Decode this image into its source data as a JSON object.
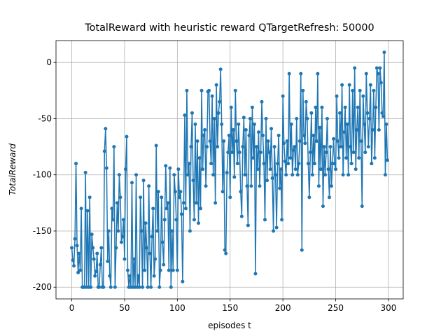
{
  "chart_data": {
    "type": "line",
    "title": "TotalReward with heuristic reward QTargetRefresh: 50000",
    "xlabel": "episodes t",
    "ylabel": "TotalReward",
    "x": [
      0,
      1,
      2,
      3,
      4,
      5,
      6,
      7,
      8,
      9,
      10,
      11,
      12,
      13,
      14,
      15,
      16,
      17,
      18,
      19,
      20,
      21,
      22,
      23,
      24,
      25,
      26,
      27,
      28,
      29,
      30,
      31,
      32,
      33,
      34,
      35,
      36,
      37,
      38,
      39,
      40,
      41,
      42,
      43,
      44,
      45,
      46,
      47,
      48,
      49,
      50,
      51,
      52,
      53,
      54,
      55,
      56,
      57,
      58,
      59,
      60,
      61,
      62,
      63,
      64,
      65,
      66,
      67,
      68,
      69,
      70,
      71,
      72,
      73,
      74,
      75,
      76,
      77,
      78,
      79,
      80,
      81,
      82,
      83,
      84,
      85,
      86,
      87,
      88,
      89,
      90,
      91,
      92,
      93,
      94,
      95,
      96,
      97,
      98,
      99,
      100,
      101,
      102,
      103,
      104,
      105,
      106,
      107,
      108,
      109,
      110,
      111,
      112,
      113,
      114,
      115,
      116,
      117,
      118,
      119,
      120,
      121,
      122,
      123,
      124,
      125,
      126,
      127,
      128,
      129,
      130,
      131,
      132,
      133,
      134,
      135,
      136,
      137,
      138,
      139,
      140,
      141,
      142,
      143,
      144,
      145,
      146,
      147,
      148,
      149,
      150,
      151,
      152,
      153,
      154,
      155,
      156,
      157,
      158,
      159,
      160,
      161,
      162,
      163,
      164,
      165,
      166,
      167,
      168,
      169,
      170,
      171,
      172,
      173,
      174,
      175,
      176,
      177,
      178,
      179,
      180,
      181,
      182,
      183,
      184,
      185,
      186,
      187,
      188,
      189,
      190,
      191,
      192,
      193,
      194,
      195,
      196,
      197,
      198,
      199,
      200,
      201,
      202,
      203,
      204,
      205,
      206,
      207,
      208,
      209,
      210,
      211,
      212,
      213,
      214,
      215,
      216,
      217,
      218,
      219,
      220,
      221,
      222,
      223,
      224,
      225,
      226,
      227,
      228,
      229,
      230,
      231,
      232,
      233,
      234,
      235,
      236,
      237,
      238,
      239,
      240,
      241,
      242,
      243,
      244,
      245,
      246,
      247,
      248,
      249,
      250,
      251,
      252,
      253,
      254,
      255,
      256,
      257,
      258,
      259,
      260,
      261,
      262,
      263,
      264,
      265,
      266,
      267,
      268,
      269,
      270,
      271,
      272,
      273,
      274,
      275,
      276,
      277,
      278,
      279,
      280,
      281,
      282,
      283,
      284,
      285,
      286,
      287,
      288,
      289,
      290,
      291,
      292,
      293,
      294,
      295,
      296,
      297,
      298,
      299
    ],
    "series": [
      {
        "color": "#1f77b4",
        "values": [
          -165,
          -176,
          -181,
          -157,
          -90,
          -163,
          -187,
          -170,
          -185,
          -130,
          -200,
          -200,
          -200,
          -98,
          -200,
          -132,
          -200,
          -120,
          -200,
          -153,
          -165,
          -175,
          -190,
          -186,
          -170,
          -200,
          -200,
          -180,
          -165,
          -200,
          -200,
          -79,
          -59,
          -94,
          -177,
          -150,
          -190,
          -200,
          -130,
          -140,
          -75,
          -200,
          -165,
          -125,
          -150,
          -100,
          -120,
          -160,
          -155,
          -140,
          -175,
          -95,
          -66,
          -185,
          -200,
          -190,
          -200,
          -107,
          -200,
          -175,
          -200,
          -100,
          -200,
          -190,
          -200,
          -120,
          -150,
          -200,
          -105,
          -185,
          -143,
          -165,
          -200,
          -110,
          -170,
          -200,
          -155,
          -130,
          -190,
          -175,
          -74,
          -150,
          -115,
          -200,
          -185,
          -120,
          -160,
          -180,
          -140,
          -92,
          -130,
          -125,
          -185,
          -94,
          -200,
          -150,
          -185,
          -100,
          -115,
          -140,
          -185,
          -95,
          -120,
          -115,
          -135,
          -195,
          -125,
          -47,
          -130,
          -25,
          -100,
          -90,
          -150,
          -75,
          -45,
          -105,
          -140,
          -55,
          -125,
          -70,
          -143,
          -85,
          -130,
          -25,
          -95,
          -65,
          -60,
          -110,
          -75,
          -26,
          -25,
          -70,
          -90,
          -30,
          -100,
          -50,
          -125,
          -20,
          -75,
          -45,
          -35,
          -6,
          -55,
          -115,
          -70,
          -167,
          -170,
          -98,
          -80,
          -65,
          -120,
          -40,
          -80,
          -60,
          -102,
          -25,
          -70,
          -90,
          -55,
          -80,
          -115,
          -137,
          -75,
          -49,
          -100,
          -60,
          -110,
          -145,
          -65,
          -50,
          -110,
          -40,
          -85,
          -55,
          -188,
          -75,
          -95,
          -62,
          -110,
          -80,
          -35,
          -65,
          -90,
          -140,
          -50,
          -105,
          -70,
          -80,
          -95,
          -59,
          -103,
          -150,
          -75,
          -100,
          -147,
          -90,
          -65,
          -112,
          -95,
          -140,
          -30,
          -72,
          -88,
          -100,
          -70,
          -90,
          -10,
          -85,
          -55,
          -100,
          -78,
          -75,
          -95,
          -50,
          -100,
          -90,
          -70,
          -10,
          -167,
          -25,
          -65,
          -72,
          -35,
          -50,
          -90,
          -120,
          -80,
          -45,
          -100,
          -65,
          -90,
          -40,
          -70,
          -10,
          -110,
          -58,
          -95,
          -40,
          -128,
          -75,
          -100,
          -80,
          -50,
          -95,
          -120,
          -75,
          -110,
          -90,
          -68,
          -90,
          -95,
          -30,
          -70,
          -85,
          -45,
          -75,
          -20,
          -100,
          -62,
          -40,
          -85,
          -55,
          -100,
          -20,
          -75,
          -90,
          -25,
          -80,
          -5,
          -95,
          -60,
          -40,
          -85,
          -25,
          -70,
          -128,
          -30,
          -55,
          -80,
          -10,
          -45,
          -75,
          -50,
          -20,
          -90,
          -60,
          -25,
          -85,
          -40,
          -5,
          -10,
          -60,
          -5,
          -18,
          -45,
          -48,
          9,
          -100,
          -55,
          -87
        ]
      }
    ],
    "xlim": [
      -14.95,
      313.95
    ],
    "ylim": [
      -210.45,
      19.45
    ],
    "xticks": [
      0,
      50,
      100,
      150,
      200,
      250,
      300
    ],
    "yticks": [
      -200,
      -150,
      -100,
      -50,
      0
    ],
    "grid": true
  }
}
